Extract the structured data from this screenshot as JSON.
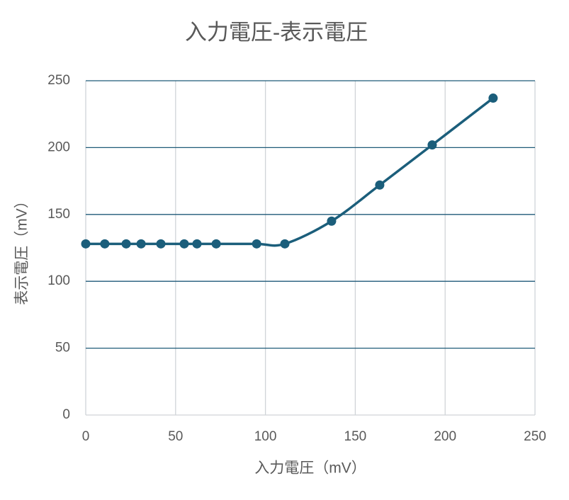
{
  "chart_data": {
    "type": "scatter_smooth",
    "title": "入力電圧-表示電圧",
    "x_label": "入力電圧（mV）",
    "y_label": "表示電圧（mV）",
    "x": [
      0,
      10.6,
      22.5,
      30.8,
      41.8,
      54.8,
      61.9,
      72.6,
      95.1,
      110.8,
      136.8,
      163.6,
      192.8,
      226.7
    ],
    "values": [
      128,
      128,
      128,
      128,
      128,
      128,
      128,
      128,
      128,
      128,
      145,
      172,
      202,
      237
    ],
    "color": "#1b5e7b",
    "xlim": [
      0,
      250
    ],
    "xticks": [
      0,
      50,
      100,
      150,
      200,
      250
    ],
    "ylim": [
      0,
      250
    ],
    "yticks": [
      0,
      50,
      100,
      150,
      200,
      250
    ],
    "grid": true,
    "x_grid_color": "#d0d4d8",
    "y_grid_color": "#1f5a78"
  }
}
